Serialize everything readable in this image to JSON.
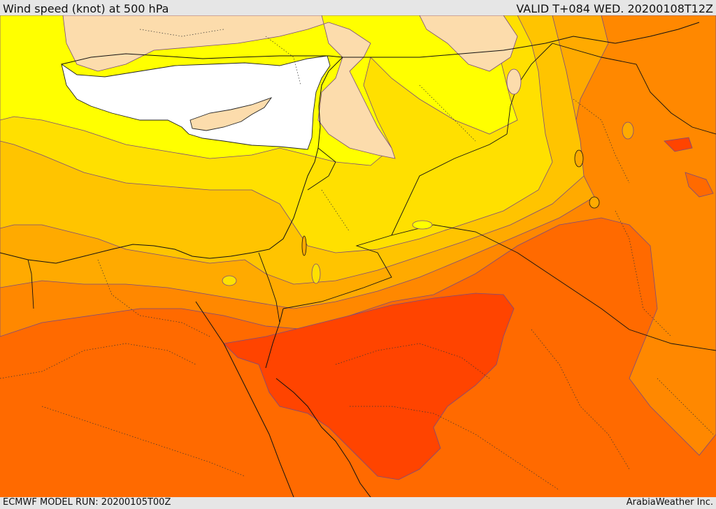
{
  "header": {
    "title": "Wind speed (knot) at 500 hPa",
    "valid_time": "VALID T+084 WED. 20200108T12Z"
  },
  "footer": {
    "model_run": "ECMWF MODEL RUN: 20200105T00Z",
    "credit": "ArabiaWeather Inc."
  },
  "colors": {
    "sea_land_white": "#ffffff",
    "land_tan": "#fcdcac",
    "yellow": "#ffff00",
    "gold": "#ffe000",
    "amber": "#ffc400",
    "orange_light": "#ffaa00",
    "orange": "#ff8800",
    "orange_dark": "#ff6a00",
    "red_orange": "#ff4400"
  }
}
